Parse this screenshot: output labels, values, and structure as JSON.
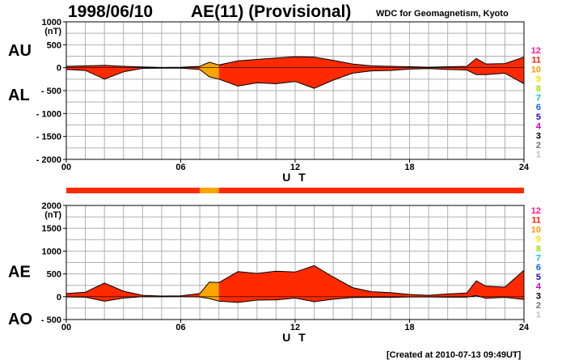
{
  "header": {
    "date": "1998/06/10",
    "title": "AE(11) (Provisional)",
    "org": "WDC for Geomagnetism, Kyoto"
  },
  "footer": "[Created at 2010-07-13 09:49UT]",
  "colors": {
    "activity_high": "#ff2a00",
    "activity_mid": "#ffa500",
    "grid": "#b0b0b0",
    "axis": "#000000"
  },
  "legend": {
    "levels": [
      {
        "label": "12",
        "color": "#ff1493"
      },
      {
        "label": "11",
        "color": "#ff2200"
      },
      {
        "label": "10",
        "color": "#ff9900"
      },
      {
        "label": "9",
        "color": "#ffe000"
      },
      {
        "label": "8",
        "color": "#99e000"
      },
      {
        "label": "7",
        "color": "#00c8c8"
      },
      {
        "label": "6",
        "color": "#0066ff"
      },
      {
        "label": "5",
        "color": "#2200cc"
      },
      {
        "label": "4",
        "color": "#cc00cc"
      },
      {
        "label": "3",
        "color": "#000000"
      },
      {
        "label": "2",
        "color": "#707070"
      },
      {
        "label": "1",
        "color": "#c0c0c0"
      }
    ]
  },
  "chart_data": [
    {
      "type": "area",
      "series": [
        {
          "name": "AU",
          "x": [
            0,
            1,
            2,
            3,
            4,
            5,
            6,
            7,
            7.5,
            8,
            9,
            10,
            11,
            12,
            13,
            14,
            15,
            16,
            17,
            18,
            19,
            20,
            21,
            21.5,
            22,
            23,
            24
          ],
          "values": [
            30,
            40,
            50,
            30,
            15,
            5,
            10,
            30,
            120,
            60,
            150,
            180,
            210,
            240,
            230,
            160,
            80,
            40,
            30,
            20,
            10,
            20,
            30,
            200,
            80,
            90,
            230
          ]
        },
        {
          "name": "AL",
          "x": [
            0,
            1,
            2,
            3,
            4,
            5,
            6,
            7,
            7.5,
            8,
            9,
            10,
            11,
            12,
            13,
            14,
            15,
            16,
            17,
            18,
            19,
            20,
            21,
            21.5,
            22,
            23,
            24
          ],
          "values": [
            -40,
            -60,
            -250,
            -90,
            -15,
            -10,
            -10,
            -40,
            -200,
            -250,
            -400,
            -330,
            -350,
            -300,
            -450,
            -270,
            -120,
            -70,
            -60,
            -30,
            -20,
            -40,
            -50,
            -150,
            -150,
            -120,
            -350
          ]
        }
      ],
      "ylabel_top": "AU",
      "ylabel_bottom": "AL",
      "ylim": [
        -2000,
        1000
      ],
      "yticks": [
        "1000",
        "500",
        "0",
        "- 500",
        "- 1000",
        "- 1500",
        "- 2000"
      ],
      "ytick_values": [
        1000,
        500,
        0,
        -500,
        -1000,
        -1500,
        -2000
      ],
      "unit": "(nT)",
      "xlim": [
        0,
        24
      ],
      "xticks": [
        "00",
        "06",
        "12",
        "18",
        "24"
      ],
      "xtick_values": [
        0,
        6,
        12,
        18,
        24
      ],
      "xlabel": "U T",
      "grid": true
    },
    {
      "type": "area",
      "series": [
        {
          "name": "AE",
          "x": [
            0,
            1,
            2,
            3,
            4,
            5,
            6,
            7,
            7.5,
            8,
            9,
            10,
            11,
            12,
            13,
            14,
            15,
            16,
            17,
            18,
            19,
            20,
            21,
            21.5,
            22,
            23,
            24
          ],
          "values": [
            70,
            100,
            300,
            120,
            30,
            15,
            20,
            70,
            320,
            310,
            550,
            510,
            560,
            540,
            680,
            430,
            200,
            110,
            90,
            50,
            30,
            60,
            80,
            350,
            230,
            210,
            580
          ]
        },
        {
          "name": "AO",
          "x": [
            0,
            1,
            2,
            3,
            4,
            5,
            6,
            7,
            7.5,
            8,
            9,
            10,
            11,
            12,
            13,
            14,
            15,
            16,
            17,
            18,
            19,
            20,
            21,
            21.5,
            22,
            23,
            24
          ],
          "values": [
            -5,
            -10,
            -100,
            -30,
            0,
            -2,
            0,
            -5,
            -40,
            -95,
            -125,
            -75,
            -70,
            -30,
            -110,
            -55,
            -20,
            -15,
            -15,
            -5,
            -5,
            -10,
            -10,
            25,
            -35,
            -15,
            -60
          ]
        }
      ],
      "ylabel_top": "AE",
      "ylabel_bottom": "AO",
      "ylim": [
        -500,
        2000
      ],
      "yticks": [
        "2000",
        "1500",
        "1000",
        "500",
        "0",
        "- 500"
      ],
      "ytick_values": [
        2000,
        1500,
        1000,
        500,
        0,
        -500
      ],
      "unit": "(nT)",
      "xlim": [
        0,
        24
      ],
      "xticks": [
        "00",
        "06",
        "12",
        "18",
        "24"
      ],
      "xtick_values": [
        0,
        6,
        12,
        18,
        24
      ],
      "xlabel": "U T",
      "grid": true
    }
  ],
  "activity_bar": {
    "segments": [
      {
        "from": 0,
        "to": 7,
        "level": "11"
      },
      {
        "from": 7,
        "to": 8,
        "level": "10"
      },
      {
        "from": 8,
        "to": 24,
        "level": "11"
      }
    ]
  },
  "area_colors": [
    {
      "from": 0,
      "to": 7,
      "color": "#ff2a00"
    },
    {
      "from": 7,
      "to": 8,
      "color": "#ffa500"
    },
    {
      "from": 8,
      "to": 24,
      "color": "#ff2a00"
    }
  ]
}
